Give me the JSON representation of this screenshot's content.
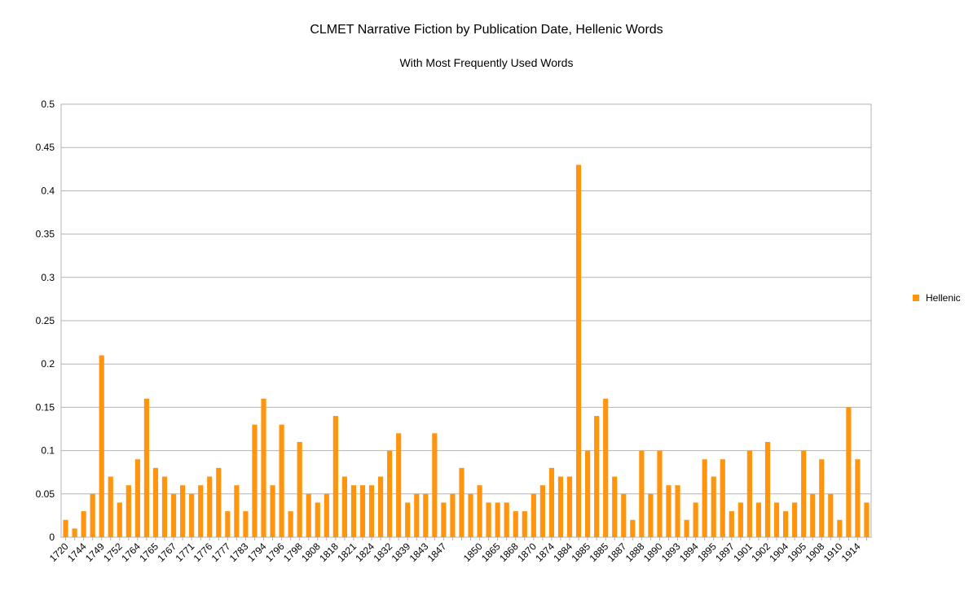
{
  "chart_data": {
    "type": "bar",
    "title": "CLMET Narrative Fiction by Publication Date, Hellenic Words",
    "subtitle": "With Most Frequently Used Words",
    "categories": [
      "1720",
      null,
      "1744",
      null,
      "1749",
      null,
      "1752",
      null,
      "1764",
      null,
      "1765",
      null,
      "1767",
      null,
      "1771",
      null,
      "1776",
      null,
      "1777",
      null,
      "1783",
      null,
      "1794",
      null,
      "1796",
      null,
      "1798",
      null,
      "1808",
      null,
      "1818",
      null,
      "1821",
      null,
      "1824",
      null,
      "1832",
      null,
      "1839",
      null,
      "1843",
      null,
      "1847",
      null,
      null,
      null,
      "1850",
      null,
      "1865",
      null,
      "1868",
      null,
      "1870",
      null,
      "1874",
      null,
      "1884",
      null,
      "1885",
      null,
      "1885",
      null,
      "1887",
      null,
      "1888",
      null,
      "1890",
      null,
      "1893",
      null,
      "1894",
      null,
      "1895",
      null,
      "1897",
      null,
      "1901",
      null,
      "1902",
      null,
      "1904",
      null,
      "1905",
      null,
      "1908",
      null,
      "1910",
      null,
      "1914",
      null
    ],
    "series": [
      {
        "name": "Hellenic",
        "color": "#ff950e",
        "values": [
          0.02,
          0.01,
          0.03,
          0.05,
          0.21,
          0.07,
          0.04,
          0.06,
          0.09,
          0.16,
          0.08,
          0.07,
          0.05,
          0.06,
          0.05,
          0.06,
          0.07,
          0.08,
          0.03,
          0.06,
          0.03,
          0.13,
          0.16,
          0.06,
          0.13,
          0.03,
          0.11,
          0.05,
          0.04,
          0.05,
          0.14,
          0.07,
          0.06,
          0.06,
          0.06,
          0.07,
          0.1,
          0.12,
          0.04,
          0.05,
          0.05,
          0.12,
          0.04,
          0.05,
          0.08,
          0.05,
          0.06,
          0.04,
          0.04,
          0.04,
          0.03,
          0.03,
          0.05,
          0.06,
          0.08,
          0.07,
          0.07,
          0.43,
          0.1,
          0.14,
          0.16,
          0.07,
          0.05,
          0.02,
          0.1,
          0.05,
          0.1,
          0.06,
          0.06,
          0.02,
          0.04,
          0.09,
          0.07,
          0.09,
          0.03,
          0.04,
          0.1,
          0.04,
          0.11,
          0.04,
          0.03,
          0.04,
          0.1,
          0.05,
          0.09,
          0.05,
          0.02,
          0.15,
          0.09,
          0.04
        ]
      }
    ],
    "ylim": [
      0,
      0.5
    ],
    "yticks": [
      0,
      0.05,
      0.1,
      0.15,
      0.2,
      0.25,
      0.3,
      0.35,
      0.4,
      0.45,
      0.5
    ],
    "grid": true,
    "legend": "right"
  }
}
